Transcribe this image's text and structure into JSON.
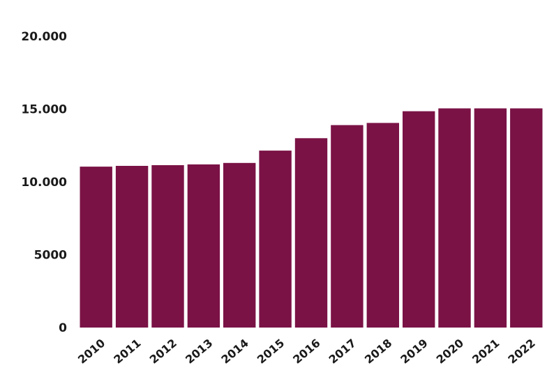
{
  "chart_data": {
    "type": "bar",
    "categories": [
      "2010",
      "2011",
      "2012",
      "2013",
      "2014",
      "2015",
      "2016",
      "2017",
      "2018",
      "2019",
      "2020",
      "2021",
      "2022"
    ],
    "values": [
      11050,
      11100,
      11150,
      11200,
      11300,
      12150,
      13000,
      13900,
      14050,
      14850,
      15050,
      15050,
      15050
    ],
    "ylim": [
      0,
      20000
    ],
    "yticks": [
      0,
      5000,
      10000,
      15000,
      20000
    ],
    "ytick_labels": [
      "0",
      "5000",
      "10.000",
      "15.000",
      "20.000"
    ],
    "grid": false,
    "bar_color": "#7a1245"
  }
}
